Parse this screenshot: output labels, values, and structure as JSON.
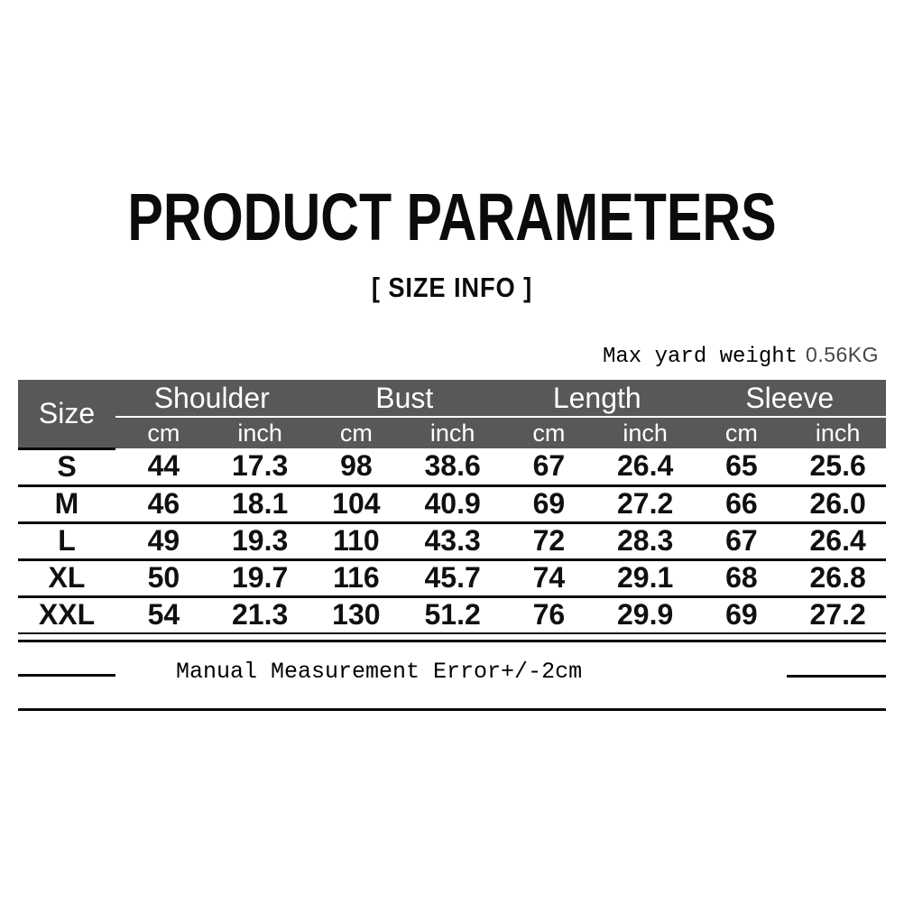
{
  "header": {
    "title": "PRODUCT PARAMETERS",
    "subtitle": "[ SIZE INFO ]"
  },
  "weight_note": {
    "label": "Max yard weight",
    "value": "0.56KG"
  },
  "size_table": {
    "size_header": "Size",
    "group_headers": [
      "Shoulder",
      "Bust",
      "Length",
      "Sleeve"
    ],
    "unit_cm": "cm",
    "unit_inch": "inch",
    "rows": [
      {
        "size": "S",
        "cells": [
          "44",
          "17.3",
          "98",
          "38.6",
          "67",
          "26.4",
          "65",
          "25.6"
        ]
      },
      {
        "size": "M",
        "cells": [
          "46",
          "18.1",
          "104",
          "40.9",
          "69",
          "27.2",
          "66",
          "26.0"
        ]
      },
      {
        "size": "L",
        "cells": [
          "49",
          "19.3",
          "110",
          "43.3",
          "72",
          "28.3",
          "67",
          "26.4"
        ]
      },
      {
        "size": "XL",
        "cells": [
          "50",
          "19.7",
          "116",
          "45.7",
          "74",
          "29.1",
          "68",
          "26.8"
        ]
      },
      {
        "size": "XXL",
        "cells": [
          "54",
          "21.3",
          "130",
          "51.2",
          "76",
          "29.9",
          "69",
          "27.2"
        ]
      }
    ]
  },
  "footer_note": "Manual Measurement Error+/-2cm",
  "colors": {
    "header_bg": "#58585a",
    "header_text": "#ffffff",
    "line": "#0a0a0a",
    "weight_value_text": "#46464c"
  }
}
